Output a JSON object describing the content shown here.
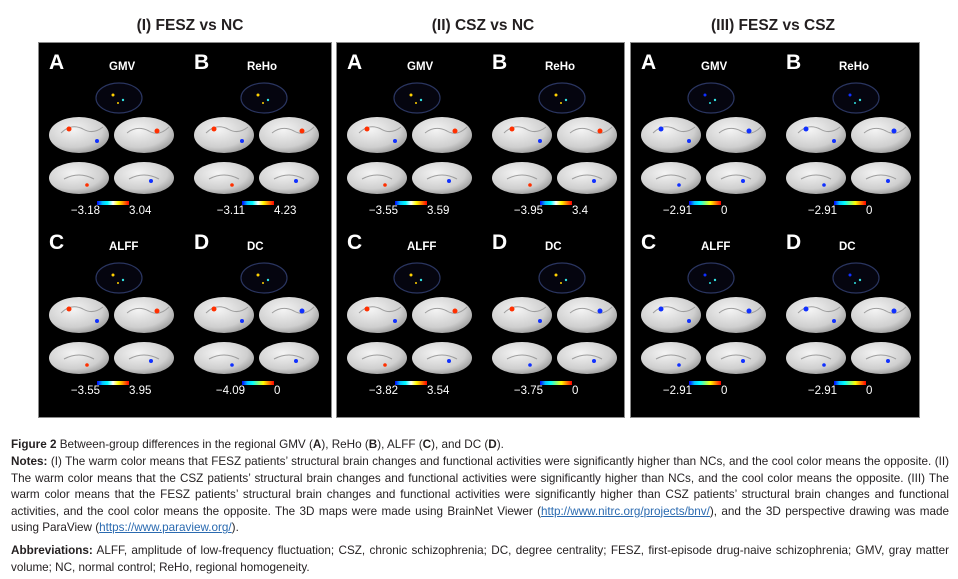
{
  "groups": [
    {
      "title": "(I) FESZ vs NC",
      "cells": [
        {
          "letter": "A",
          "metric": "GMV",
          "min": "−3.18",
          "max": "3.04"
        },
        {
          "letter": "B",
          "metric": "ReHo",
          "min": "−3.11",
          "max": "4.23"
        },
        {
          "letter": "C",
          "metric": "ALFF",
          "min": "−3.55",
          "max": "3.95"
        },
        {
          "letter": "D",
          "metric": "DC",
          "min": "−4.09",
          "max": "0"
        }
      ]
    },
    {
      "title": "(II) CSZ vs NC",
      "cells": [
        {
          "letter": "A",
          "metric": "GMV",
          "min": "−3.55",
          "max": "3.59"
        },
        {
          "letter": "B",
          "metric": "ReHo",
          "min": "−3.95",
          "max": "3.4"
        },
        {
          "letter": "C",
          "metric": "ALFF",
          "min": "−3.82",
          "max": "3.54"
        },
        {
          "letter": "D",
          "metric": "DC",
          "min": "−3.75",
          "max": "0"
        }
      ]
    },
    {
      "title": "(III) FESZ vs CSZ",
      "cells": [
        {
          "letter": "A",
          "metric": "GMV",
          "min": "−2.91",
          "max": "0"
        },
        {
          "letter": "B",
          "metric": "ReHo",
          "min": "−2.91",
          "max": "0"
        },
        {
          "letter": "C",
          "metric": "ALFF",
          "min": "−2.91",
          "max": "0"
        },
        {
          "letter": "D",
          "metric": "DC",
          "min": "−2.91",
          "max": "0"
        }
      ]
    }
  ],
  "caption": {
    "figure_label": "Figure 2",
    "figure_text_1": " Between-group differences in the regional GMV (",
    "figure_A": "A",
    "figure_text_2": "), ReHo (",
    "figure_B": "B",
    "figure_text_3": "), ALFF (",
    "figure_C": "C",
    "figure_text_4": "), and DC (",
    "figure_D": "D",
    "figure_text_5": ").",
    "notes_label": "Notes:",
    "notes_text": " (I) The warm color means that FESZ patients’ structural brain changes and functional activities were significantly higher than NCs, and the cool color means the opposite. (II) The warm color means that the CSZ patients’ structural brain changes and functional activities were significantly higher than NCs, and the cool color means the opposite. (III) The warm color means that the FESZ patients’ structural brain changes and functional activities were significantly higher than CSZ patients’ structural brain changes and functional activities, and the cool color means the opposite. The 3D maps were made using BrainNet Viewer (",
    "link1": "http://www.nitrc.org/projects/bnv/",
    "notes_mid": "), and the 3D perspective drawing was made using ParaView (",
    "link2": "https://www.paraview.org/",
    "notes_end": ").",
    "abbr_label": "Abbreviations:",
    "abbr_text": " ALFF, amplitude of low-frequency fluctuation; CSZ, chronic schizophrenia; DC, degree centrality; FESZ, first-episode drug-naive schizophrenia; GMV, gray matter volume; NC, normal control; ReHo, regional homogeneity."
  },
  "colors": {
    "warm": "#ff3000",
    "cool": "#1030ff",
    "cyan": "#30e0e0",
    "brain": "#d9d9d9"
  }
}
